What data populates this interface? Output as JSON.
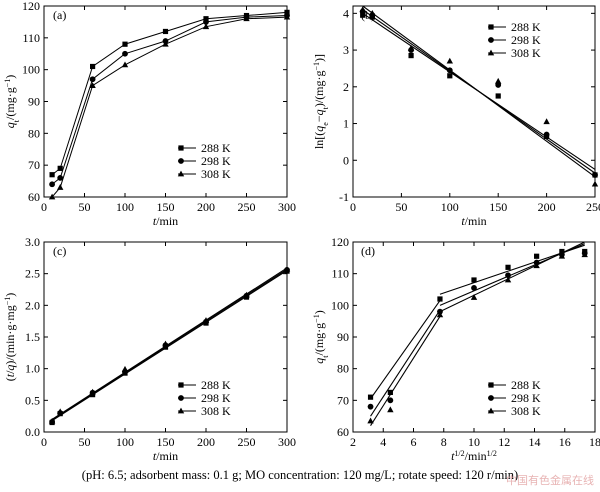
{
  "caption": "(pH: 6.5; adsorbent mass: 0.1 g; MO concentration: 120 mg/L; rotate speed: 120 r/min)",
  "watermark": "中国有色金属在线",
  "chart_data": [
    {
      "panel": "(a)",
      "type": "line",
      "xlabel": "t/min",
      "ylabel": "qt/(mg·g-1)",
      "xlim": [
        0,
        300
      ],
      "ylim": [
        60,
        120
      ],
      "xticks": [
        0,
        50,
        100,
        150,
        200,
        250,
        300
      ],
      "yticks": [
        60,
        70,
        80,
        90,
        100,
        110,
        120
      ],
      "legend_position": "bottom-right",
      "series": [
        {
          "name": "288 K",
          "marker": "square",
          "x": [
            10,
            20,
            60,
            100,
            150,
            200,
            250,
            300
          ],
          "y": [
            67,
            69,
            101,
            108,
            112,
            116,
            117,
            118
          ]
        },
        {
          "name": "298 K",
          "marker": "circle",
          "x": [
            10,
            20,
            60,
            100,
            150,
            200,
            250,
            300
          ],
          "y": [
            64,
            66,
            97,
            105,
            109,
            115,
            116.5,
            117
          ]
        },
        {
          "name": "308 K",
          "marker": "triangle",
          "x": [
            10,
            20,
            60,
            100,
            150,
            200,
            250,
            300
          ],
          "y": [
            60,
            63,
            95,
            101.5,
            108,
            113.5,
            116,
            116.5
          ]
        }
      ]
    },
    {
      "panel": "(b)",
      "type": "scatter",
      "xlabel": "t/min",
      "ylabel": "ln[(qe−qt)/(mg·g−1)]",
      "xlim": [
        0,
        250
      ],
      "ylim": [
        -1,
        4.2
      ],
      "xticks": [
        0,
        50,
        100,
        150,
        200,
        250
      ],
      "yticks": [
        -1,
        0,
        1,
        2,
        3,
        4
      ],
      "legend_position": "top-right",
      "series": [
        {
          "name": "288 K",
          "marker": "square",
          "x": [
            10,
            20,
            60,
            100,
            150,
            200,
            250
          ],
          "y": [
            3.95,
            3.9,
            2.85,
            2.3,
            1.75,
            0.65,
            -0.4
          ],
          "fit": [
            [
              10,
              4.0
            ],
            [
              250,
              -0.25
            ]
          ]
        },
        {
          "name": "298 K",
          "marker": "circle",
          "x": [
            10,
            20,
            60,
            100,
            150,
            200,
            250
          ],
          "y": [
            4.05,
            3.95,
            3.0,
            2.45,
            2.05,
            0.7,
            -0.4
          ],
          "fit": [
            [
              10,
              4.1
            ],
            [
              250,
              -0.35
            ]
          ]
        },
        {
          "name": "308 K",
          "marker": "triangle",
          "x": [
            10,
            20,
            60,
            100,
            150,
            200,
            250
          ],
          "y": [
            4.1,
            4.0,
            3.05,
            2.7,
            2.15,
            1.05,
            -0.65
          ],
          "fit": [
            [
              10,
              4.2
            ],
            [
              250,
              -0.45
            ]
          ]
        }
      ]
    },
    {
      "panel": "(c)",
      "type": "scatter",
      "xlabel": "t/min",
      "ylabel": "(t/q)/(min·g·mg−1)",
      "xlim": [
        0,
        300
      ],
      "ylim": [
        0,
        3.0
      ],
      "xticks": [
        0,
        50,
        100,
        150,
        200,
        250,
        300
      ],
      "yticks": [
        0,
        0.5,
        1.0,
        1.5,
        2.0,
        2.5,
        3.0
      ],
      "legend_position": "bottom-right",
      "series": [
        {
          "name": "288 K",
          "marker": "square",
          "x": [
            10,
            20,
            60,
            100,
            150,
            200,
            250,
            300
          ],
          "y": [
            0.15,
            0.29,
            0.59,
            0.93,
            1.34,
            1.72,
            2.13,
            2.54
          ],
          "fit": [
            [
              10,
              0.18
            ],
            [
              300,
              2.55
            ]
          ]
        },
        {
          "name": "298 K",
          "marker": "circle",
          "x": [
            10,
            20,
            60,
            100,
            150,
            200,
            250,
            300
          ],
          "y": [
            0.16,
            0.3,
            0.62,
            0.95,
            1.37,
            1.74,
            2.15,
            2.56
          ],
          "fit": [
            [
              10,
              0.19
            ],
            [
              300,
              2.57
            ]
          ]
        },
        {
          "name": "308 K",
          "marker": "triangle",
          "x": [
            10,
            20,
            60,
            100,
            150,
            200,
            250,
            300
          ],
          "y": [
            0.17,
            0.32,
            0.63,
            0.99,
            1.39,
            1.76,
            2.16,
            2.57
          ],
          "fit": [
            [
              10,
              0.2
            ],
            [
              300,
              2.59
            ]
          ]
        }
      ]
    },
    {
      "panel": "(d)",
      "type": "scatter",
      "xlabel": "t1/2/min1/2",
      "ylabel": "qt/(mg·g-1)",
      "xlim": [
        2,
        18
      ],
      "ylim": [
        60,
        120
      ],
      "xticks": [
        2,
        4,
        6,
        8,
        10,
        12,
        14,
        16,
        18
      ],
      "yticks": [
        60,
        70,
        80,
        90,
        100,
        110,
        120
      ],
      "legend_position": "bottom-right",
      "series": [
        {
          "name": "288 K",
          "marker": "square",
          "x": [
            3.16,
            4.47,
            7.75,
            10.0,
            12.25,
            14.14,
            15.81,
            17.32
          ],
          "y": [
            71,
            72.5,
            102,
            108,
            112,
            115.5,
            117,
            117
          ],
          "fit": [
            [
              3.16,
              70.5
            ],
            [
              7.75,
              101.5
            ],
            [
              7.75,
              103.5
            ],
            [
              17.32,
              119
            ]
          ]
        },
        {
          "name": "298 K",
          "marker": "circle",
          "x": [
            3.16,
            4.47,
            7.75,
            10.0,
            12.25,
            14.14,
            15.81,
            17.32
          ],
          "y": [
            68,
            70,
            98,
            105.5,
            109.5,
            113.5,
            116,
            116.5
          ],
          "fit": [
            [
              3.16,
              65
            ],
            [
              7.75,
              98.5
            ],
            [
              7.75,
              100
            ],
            [
              17.32,
              119.5
            ]
          ]
        },
        {
          "name": "308 K",
          "marker": "triangle",
          "x": [
            3.16,
            4.47,
            7.75,
            10.0,
            12.25,
            14.14,
            15.81,
            17.32
          ],
          "y": [
            63.5,
            67,
            97,
            102.5,
            108,
            112.5,
            115.5,
            116
          ],
          "fit": [
            [
              3.16,
              62
            ],
            [
              7.75,
              96.5
            ],
            [
              7.75,
              98
            ],
            [
              17.32,
              120
            ]
          ]
        }
      ]
    }
  ]
}
